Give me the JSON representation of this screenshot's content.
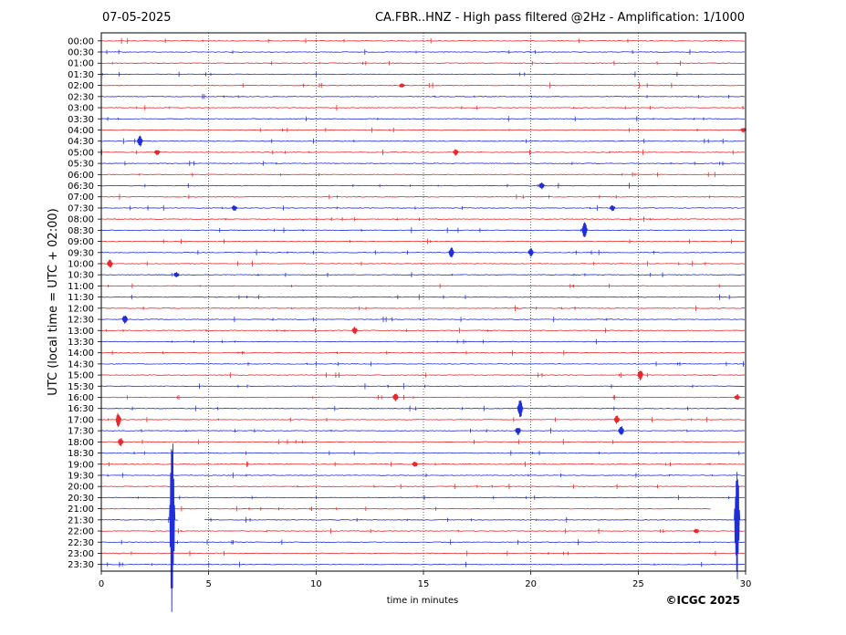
{
  "header": {
    "date": "07-05-2025",
    "title": "CA.FBR..HNZ - High pass filtered @2Hz - Amplification: 1/1000"
  },
  "footer": {
    "copyright": "©ICGC 2025"
  },
  "colors": {
    "trace_red": "#e8282a",
    "trace_blue": "#1f2ed8",
    "axis": "#000000"
  },
  "chart_data": {
    "type": "line",
    "xlabel": "time in minutes",
    "ylabel": "UTC (local time = UTC + 02:00)",
    "xlim": [
      0,
      30
    ],
    "xticks": [
      0,
      5,
      10,
      15,
      20,
      25,
      30
    ],
    "vertical_gridlines": [
      5,
      10,
      15,
      20,
      25
    ],
    "grid": "vertical dotted",
    "rows": [
      "00:00",
      "00:30",
      "01:00",
      "01:30",
      "02:00",
      "02:30",
      "03:00",
      "03:30",
      "04:00",
      "04:30",
      "05:00",
      "05:30",
      "06:00",
      "06:30",
      "07:00",
      "07:30",
      "08:00",
      "08:30",
      "09:00",
      "09:30",
      "10:00",
      "10:30",
      "11:00",
      "11:30",
      "12:00",
      "12:30",
      "13:00",
      "13:30",
      "14:00",
      "14:30",
      "15:00",
      "15:30",
      "16:00",
      "16:30",
      "17:00",
      "17:30",
      "18:00",
      "18:30",
      "19:00",
      "19:30",
      "20:00",
      "20:30",
      "21:00",
      "21:30",
      "22:00",
      "22:30",
      "23:00",
      "23:30"
    ],
    "row_colors": [
      "red",
      "blue"
    ],
    "events": [
      {
        "row": "02:00",
        "minute": 14.0,
        "amp": 0.2
      },
      {
        "row": "04:00",
        "minute": 29.9,
        "amp": 0.25
      },
      {
        "row": "04:30",
        "minute": 1.8,
        "amp": 0.5
      },
      {
        "row": "05:00",
        "minute": 2.6,
        "amp": 0.3
      },
      {
        "row": "05:00",
        "minute": 16.5,
        "amp": 0.3
      },
      {
        "row": "06:30",
        "minute": 20.5,
        "amp": 0.35
      },
      {
        "row": "07:30",
        "minute": 6.2,
        "amp": 0.3
      },
      {
        "row": "07:30",
        "minute": 23.8,
        "amp": 0.3
      },
      {
        "row": "08:30",
        "minute": 22.5,
        "amp": 0.8
      },
      {
        "row": "09:30",
        "minute": 16.3,
        "amp": 0.5
      },
      {
        "row": "09:30",
        "minute": 20.0,
        "amp": 0.4
      },
      {
        "row": "10:00",
        "minute": 0.4,
        "amp": 0.45
      },
      {
        "row": "10:30",
        "minute": 3.5,
        "amp": 0.3
      },
      {
        "row": "12:30",
        "minute": 1.1,
        "amp": 0.45
      },
      {
        "row": "13:00",
        "minute": 11.8,
        "amp": 0.35
      },
      {
        "row": "15:00",
        "minute": 25.1,
        "amp": 0.5
      },
      {
        "row": "16:00",
        "minute": 13.7,
        "amp": 0.4
      },
      {
        "row": "16:00",
        "minute": 29.6,
        "amp": 0.3
      },
      {
        "row": "16:30",
        "minute": 19.5,
        "amp": 0.9
      },
      {
        "row": "17:00",
        "minute": 0.8,
        "amp": 0.7
      },
      {
        "row": "17:00",
        "minute": 24.0,
        "amp": 0.4
      },
      {
        "row": "17:30",
        "minute": 19.4,
        "amp": 0.4
      },
      {
        "row": "17:30",
        "minute": 24.2,
        "amp": 0.5
      },
      {
        "row": "18:00",
        "minute": 0.9,
        "amp": 0.4
      },
      {
        "row": "19:00",
        "minute": 14.6,
        "amp": 0.25
      },
      {
        "row": "21:30",
        "minute": 3.3,
        "amp": 8.5
      },
      {
        "row": "21:30",
        "minute": 29.6,
        "amp": 5.5
      },
      {
        "row": "22:00",
        "minute": 27.7,
        "amp": 0.25
      }
    ],
    "gaps": [
      {
        "row": "21:00",
        "from": 28.4,
        "to": 30
      },
      {
        "row": "21:30",
        "from": 3.6,
        "to": 4.8
      }
    ]
  }
}
